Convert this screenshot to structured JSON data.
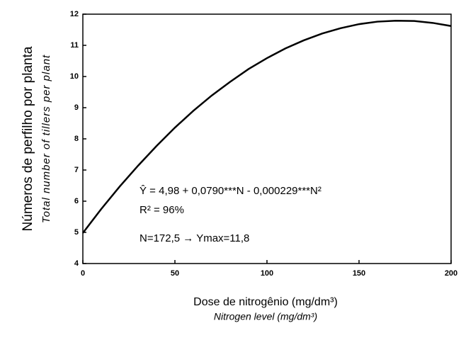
{
  "chart_data": {
    "type": "line",
    "y_label": "Números de perfilho por planta",
    "y_label_en": "Total number of tillers per plant",
    "x_label": "Dose de nitrogênio (mg/dm³)",
    "x_label_en": "Nitrogen level (mg/dm³)",
    "annotations": [
      "Ŷ = 4,98 + 0,0790***N - 0,000229***N²",
      "R² = 96%",
      "N=172,5 → Ymax=11,8"
    ],
    "x": [
      0,
      10,
      20,
      30,
      40,
      50,
      60,
      70,
      80,
      90,
      100,
      110,
      120,
      130,
      140,
      150,
      160,
      170,
      180,
      190,
      200
    ],
    "series": [
      {
        "color": "#000000",
        "values": [
          4.98,
          5.75,
          6.47,
          7.14,
          7.77,
          8.36,
          8.9,
          9.39,
          9.83,
          10.24,
          10.59,
          10.9,
          11.16,
          11.38,
          11.55,
          11.68,
          11.76,
          11.79,
          11.78,
          11.72,
          11.62
        ]
      }
    ],
    "xlim": [
      0,
      200
    ],
    "xticks": [
      0,
      50,
      100,
      150,
      200
    ],
    "ylim": [
      4,
      12
    ],
    "yticks": [
      4,
      5,
      6,
      7,
      8,
      9,
      10,
      11,
      12
    ],
    "grid": false
  }
}
